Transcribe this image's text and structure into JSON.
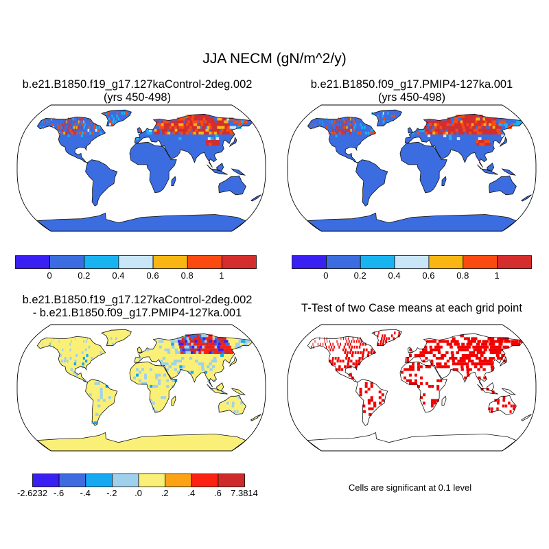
{
  "title": "JJA NECM (gN/m^2/y)",
  "panels": [
    {
      "title_line1": "b.e21.B1850.f19_g17.127kaControl-2deg.002",
      "title_line2": "(yrs 450-498)"
    },
    {
      "title_line1": "b.e21.B1850.f09_g17.PMIP4-127ka.001",
      "title_line2": "(yrs 450-498)"
    },
    {
      "title_line1": "b.e21.B1850.f19_g17.127kaControl-2deg.002",
      "title_line2": "- b.e21.B1850.f09_g17.PMIP4-127ka.001"
    },
    {
      "title_line1": "T-Test of two Case means at each grid point",
      "title_line2": ""
    }
  ],
  "colorbar_top": {
    "colors": [
      "#3a1ff2",
      "#3b6de0",
      "#1ab3f2",
      "#c8e6f8",
      "#f9b612",
      "#fb4a10",
      "#d42d2d"
    ],
    "labels": [
      "0",
      "0.2",
      "0.4",
      "0.6",
      "0.8",
      "1"
    ]
  },
  "colorbar_diff": {
    "colors": [
      "#3a1ff2",
      "#3f6be0",
      "#16a8f0",
      "#9fd0ec",
      "#fbf077",
      "#fba215",
      "#fb2212",
      "#cf2a2a"
    ],
    "labels": [
      "-2.6232",
      "-.6",
      "-.4",
      "-.2",
      ".0",
      ".2",
      ".4",
      ".6",
      "7.3814"
    ]
  },
  "significance_note": "Cells are significant at 0.1 level",
  "colors": {
    "land_control": "#3b6de0",
    "land_diff": "#fbf077",
    "significant": "#f20000",
    "coast": "#111111"
  }
}
